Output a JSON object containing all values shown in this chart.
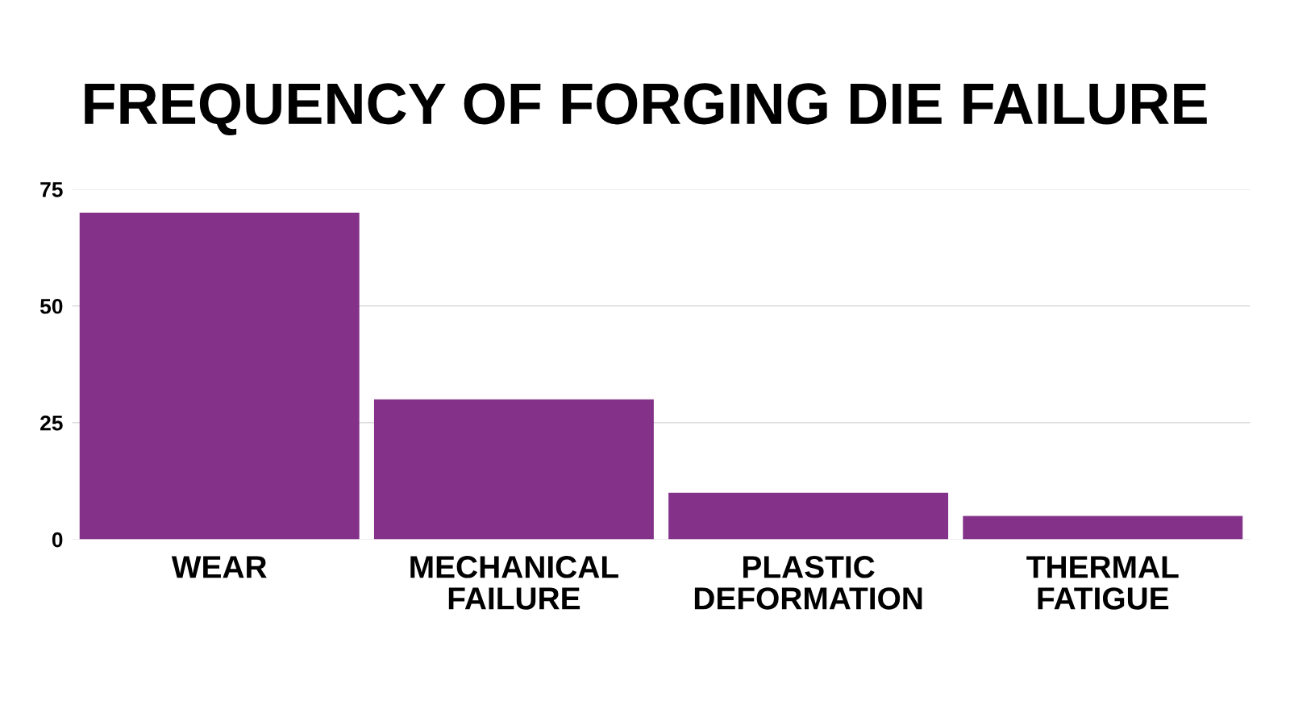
{
  "chart_data": {
    "type": "bar",
    "title": "FREQUENCY OF FORGING DIE FAILURE",
    "categories": [
      "WEAR",
      "MECHANICAL FAILURE",
      "PLASTIC DEFORMATION",
      "THERMAL FATIGUE"
    ],
    "values": [
      70,
      30,
      10,
      5
    ],
    "color": "#833189",
    "ylim": [
      0,
      75
    ],
    "yticks": [
      0,
      25,
      50,
      75
    ],
    "grid": "y"
  }
}
